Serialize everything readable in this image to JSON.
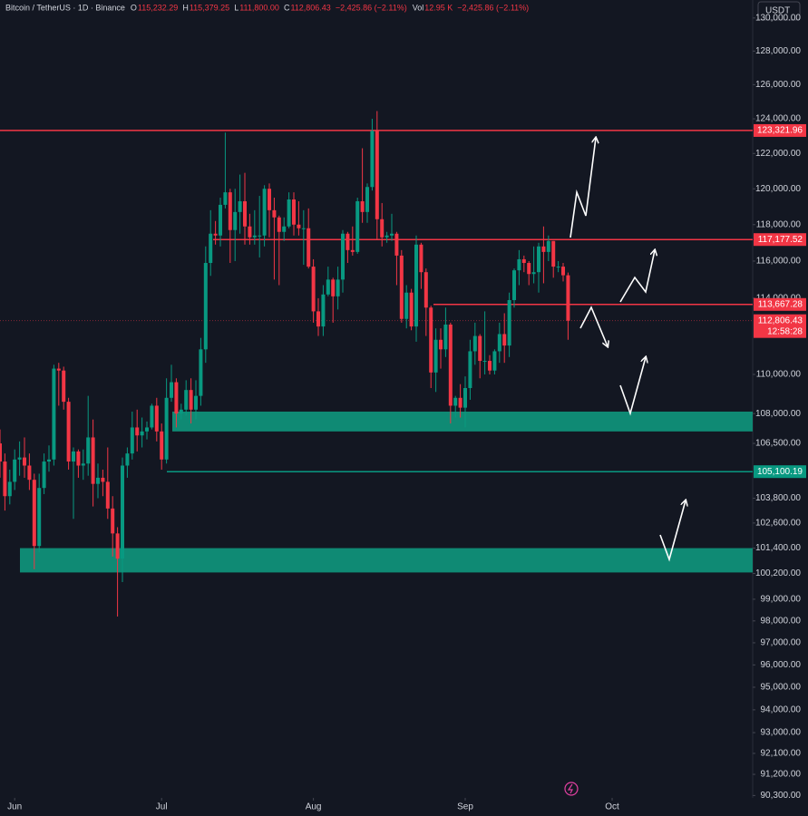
{
  "chart_data": {
    "type": "candlestick",
    "header": [
      {
        "label": "Bitcoin / TetherUS · 1D · Binance",
        "value": ""
      },
      {
        "label": "O",
        "value": "115,232.29"
      },
      {
        "label": "H",
        "value": "115,379.25"
      },
      {
        "label": "L",
        "value": "111,800.00"
      },
      {
        "label": "C",
        "value": "112,806.43"
      },
      {
        "label": "−2,425.86 (−2.11%)",
        "value": ""
      },
      {
        "label": "Vol",
        "value": "12.95 K"
      },
      {
        "label": "−2,425.86 (−2.11%)",
        "value": ""
      }
    ],
    "currency_button": "USDT",
    "x": [
      -3,
      -2,
      -1,
      0,
      1,
      2,
      3,
      4,
      5,
      6,
      7,
      8,
      9,
      10,
      11,
      12,
      13,
      14,
      15,
      16,
      17,
      18,
      19,
      20,
      21,
      22,
      23,
      24,
      25,
      26,
      27,
      28,
      29,
      30,
      31,
      32,
      33,
      34,
      35,
      36,
      37,
      38,
      39,
      40,
      41,
      42,
      43,
      44,
      45,
      46,
      47,
      48,
      49,
      50,
      51,
      52,
      53,
      54,
      55,
      56,
      57,
      58,
      59,
      60,
      61,
      62,
      63,
      64,
      65,
      66,
      67,
      68,
      69,
      70,
      71,
      72,
      73,
      74,
      75,
      76,
      77,
      78,
      79,
      80,
      81,
      82,
      83,
      84,
      85,
      86,
      87,
      88,
      89,
      90,
      91,
      92,
      93,
      94,
      95,
      96,
      97,
      98,
      99,
      100,
      101,
      102,
      103,
      104,
      105,
      106,
      107,
      108,
      109,
      110,
      111,
      112,
      113
    ],
    "open": [
      106500,
      105600,
      103900,
      104600,
      105700,
      105800,
      105400,
      104700,
      101500,
      104300,
      105600,
      105700,
      110300,
      110200,
      108600,
      105600,
      106100,
      105400,
      105500,
      106800,
      104500,
      104800,
      104600,
      103300,
      102100,
      100900,
      105400,
      106000,
      107300,
      106900,
      107100,
      107300,
      108400,
      107100,
      105700,
      108800,
      109600,
      108000,
      108200,
      109200,
      108200,
      108900,
      111300,
      115900,
      117500,
      117400,
      119100,
      119800,
      117700,
      118700,
      119300,
      117900,
      117300,
      117400,
      117400,
      120000,
      118800,
      118400,
      117600,
      117900,
      119400,
      118000,
      117800,
      117800,
      115700,
      113300,
      112500,
      114200,
      115000,
      114100,
      115000,
      117500,
      116600,
      116500,
      119300,
      118700,
      120100,
      123300,
      118300,
      117300,
      117400,
      117500,
      116300,
      112900,
      114300,
      112500,
      116900,
      115400,
      113500,
      110100,
      111800,
      111300,
      112600,
      108400,
      108800,
      108300,
      109300,
      111200,
      112000,
      110700,
      110700,
      110200,
      111200,
      112100,
      111500,
      113900,
      115500,
      116100,
      115900,
      115300,
      115400,
      116800,
      116500,
      117100,
      115700,
      115700,
      115232.29
    ],
    "high": [
      107200,
      106000,
      105200,
      106200,
      106600,
      106800,
      106000,
      105000,
      105000,
      106000,
      106400,
      110500,
      110600,
      110400,
      108800,
      106300,
      106200,
      106200,
      108900,
      107700,
      105500,
      105200,
      106300,
      103900,
      102400,
      105800,
      106300,
      108100,
      108200,
      107800,
      107600,
      108500,
      108800,
      107500,
      109800,
      110500,
      109800,
      108500,
      109700,
      109800,
      109700,
      111900,
      116800,
      118800,
      118200,
      119500,
      123200,
      120000,
      120000,
      120800,
      120900,
      118600,
      118800,
      119600,
      120200,
      120300,
      119500,
      118500,
      118400,
      119800,
      119800,
      119300,
      118800,
      118900,
      116100,
      114000,
      114700,
      115700,
      115100,
      115700,
      117700,
      117600,
      117900,
      119500,
      122300,
      120300,
      124000,
      124450,
      119200,
      117600,
      118600,
      117600,
      116600,
      114700,
      114500,
      117400,
      117000,
      115600,
      113600,
      112400,
      112400,
      113500,
      112700,
      108900,
      109500,
      109900,
      111800,
      112700,
      112100,
      113300,
      111000,
      111300,
      112700,
      113200,
      114300,
      115600,
      116600,
      116300,
      116000,
      116800,
      117000,
      117900,
      117400,
      117100,
      116000,
      115900,
      115379.25
    ],
    "low": [
      104800,
      103200,
      103500,
      104200,
      104900,
      104800,
      104200,
      100400,
      101200,
      104000,
      105100,
      105400,
      108400,
      108200,
      105200,
      102800,
      104800,
      104700,
      104900,
      103400,
      103800,
      103900,
      102800,
      101000,
      98200,
      99800,
      104800,
      105700,
      106100,
      106300,
      106700,
      107200,
      106600,
      105200,
      105500,
      108600,
      107300,
      107700,
      107900,
      107500,
      107700,
      108400,
      110600,
      115200,
      116900,
      116800,
      118900,
      115900,
      116000,
      117500,
      116900,
      116900,
      116900,
      116200,
      116800,
      117300,
      115000,
      114700,
      117100,
      117800,
      117400,
      117400,
      115800,
      115600,
      112700,
      112000,
      112000,
      114100,
      112700,
      113400,
      114300,
      115900,
      116300,
      116400,
      118100,
      118100,
      119900,
      117200,
      116800,
      117000,
      117100,
      114700,
      112700,
      112400,
      112300,
      111700,
      114500,
      112000,
      109300,
      109100,
      110300,
      110900,
      107500,
      107800,
      107800,
      107300,
      108700,
      110500,
      109800,
      110000,
      110000,
      110000,
      110600,
      110600,
      110900,
      113500,
      114700,
      115400,
      114700,
      114800,
      114300,
      114800,
      116000,
      115100,
      115400,
      114900,
      111800
    ],
    "close": [
      105600,
      103900,
      104600,
      105700,
      105800,
      105400,
      104700,
      101500,
      104300,
      105600,
      105700,
      110300,
      110200,
      108600,
      105600,
      106100,
      105400,
      105500,
      106800,
      104500,
      104800,
      104600,
      103300,
      102100,
      100900,
      105400,
      106000,
      107300,
      106900,
      107100,
      107300,
      108400,
      107100,
      105700,
      108800,
      109600,
      108000,
      108200,
      109200,
      108200,
      108900,
      111300,
      115900,
      117500,
      117400,
      119100,
      119800,
      117700,
      118700,
      119300,
      117900,
      117300,
      117400,
      117400,
      120000,
      118800,
      118400,
      117600,
      117900,
      119400,
      118000,
      117800,
      117800,
      115700,
      113300,
      112500,
      114200,
      115000,
      114100,
      115000,
      117500,
      116600,
      116500,
      119300,
      118700,
      120100,
      123300,
      118300,
      117300,
      117400,
      117500,
      116300,
      112900,
      114300,
      112500,
      116900,
      115400,
      113500,
      110100,
      111800,
      111300,
      112600,
      108400,
      108800,
      108300,
      109300,
      111200,
      112000,
      110700,
      110700,
      110200,
      111200,
      112100,
      111500,
      113900,
      115500,
      116100,
      115900,
      115300,
      115400,
      116800,
      116500,
      117100,
      115700,
      115700,
      115232.29,
      112806.43
    ],
    "up_color": "#089981",
    "down_color": "#f23645",
    "xlim": [
      -3,
      150.7
    ],
    "xticks": [
      {
        "value": 0,
        "label": "Jun"
      },
      {
        "value": 30,
        "label": "Jul"
      },
      {
        "value": 61,
        "label": "Aug"
      },
      {
        "value": 92,
        "label": "Sep"
      },
      {
        "value": 122,
        "label": "Oct"
      }
    ],
    "ylim": [
      90200,
      131100
    ],
    "log_scale": true,
    "grid": false,
    "yticks": [
      {
        "value": 130000,
        "label": "130,000.00"
      },
      {
        "value": 128000,
        "label": "128,000.00"
      },
      {
        "value": 126000,
        "label": "126,000.00"
      },
      {
        "value": 124000,
        "label": "124,000.00"
      },
      {
        "value": 122000,
        "label": "122,000.00"
      },
      {
        "value": 120000,
        "label": "120,000.00"
      },
      {
        "value": 118000,
        "label": "118,000.00"
      },
      {
        "value": 116000,
        "label": "116,000.00"
      },
      {
        "value": 114000,
        "label": "114,000.00"
      },
      {
        "value": 110000,
        "label": "110,000.00"
      },
      {
        "value": 108000,
        "label": "108,000.00"
      },
      {
        "value": 106500,
        "label": "106,500.00"
      },
      {
        "value": 103800,
        "label": "103,800.00"
      },
      {
        "value": 102600,
        "label": "102,600.00"
      },
      {
        "value": 101400,
        "label": "101,400.00"
      },
      {
        "value": 100200,
        "label": "100,200.00"
      },
      {
        "value": 99000,
        "label": "99,000.00"
      },
      {
        "value": 98000,
        "label": "98,000.00"
      },
      {
        "value": 97000,
        "label": "97,000.00"
      },
      {
        "value": 96000,
        "label": "96,000.00"
      },
      {
        "value": 95000,
        "label": "95,000.00"
      },
      {
        "value": 94000,
        "label": "94,000.00"
      },
      {
        "value": 93000,
        "label": "93,000.00"
      },
      {
        "value": 92100,
        "label": "92,100.00"
      },
      {
        "value": 91200,
        "label": "91,200.00"
      },
      {
        "value": 90300,
        "label": "90,300.00"
      }
    ],
    "levels": [
      {
        "value": 123321.96,
        "label": "123,321.96",
        "color": "#f23645"
      },
      {
        "value": 117177.52,
        "label": "117,177.52",
        "color": "#f23645"
      },
      {
        "value": 113667.28,
        "label": "113,667.28",
        "color": "#f23645"
      },
      {
        "value": 105100.19,
        "label": "105,100.19",
        "color": "#089981"
      }
    ],
    "last_price": {
      "value": 112806.43,
      "label": "112,806.43",
      "countdown": "12:58:28",
      "color": "#f23645"
    },
    "zones": [
      {
        "from": 107100,
        "to": 108100,
        "color": "#0f8a74"
      },
      {
        "from": 100250,
        "to": 101400,
        "color": "#0f8a74"
      }
    ]
  }
}
